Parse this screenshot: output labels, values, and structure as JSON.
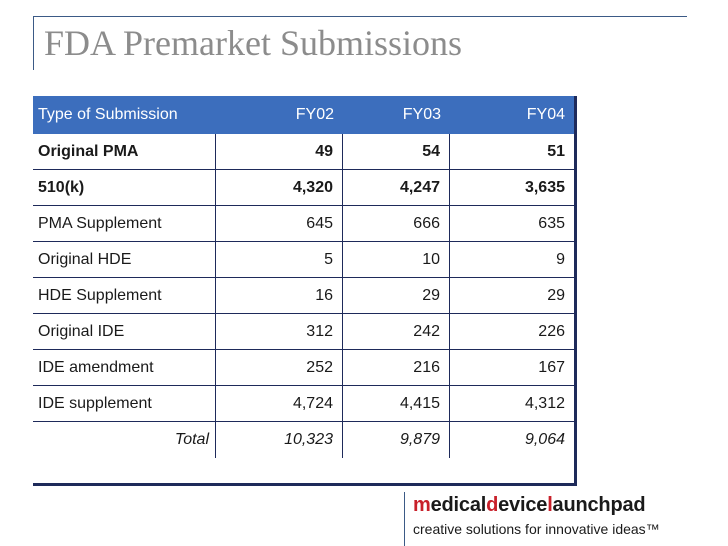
{
  "title": "FDA Premarket Submissions",
  "table": {
    "headers": [
      "Type of Submission",
      "FY02",
      "FY03",
      "FY04"
    ],
    "rows": [
      {
        "label": "Original PMA",
        "fy02": "49",
        "fy03": "54",
        "fy04": "51",
        "bold": true
      },
      {
        "label": "510(k)",
        "fy02": "4,320",
        "fy03": "4,247",
        "fy04": "3,635",
        "bold": true
      },
      {
        "label": "PMA Supplement",
        "fy02": "645",
        "fy03": "666",
        "fy04": "635"
      },
      {
        "label": "Original HDE",
        "fy02": "5",
        "fy03": "10",
        "fy04": "9"
      },
      {
        "label": "HDE Supplement",
        "fy02": "16",
        "fy03": "29",
        "fy04": "29"
      },
      {
        "label": "Original IDE",
        "fy02": "312",
        "fy03": "242",
        "fy04": "226"
      },
      {
        "label": "IDE amendment",
        "fy02": "252",
        "fy03": "216",
        "fy04": "167"
      },
      {
        "label": "IDE supplement",
        "fy02": "4,724",
        "fy03": "4,415",
        "fy04": "4,312"
      }
    ],
    "total": {
      "label": "Total",
      "fy02": "10,323",
      "fy03": "9,879",
      "fy04": "9,064"
    }
  },
  "logo": {
    "parts": [
      {
        "text": "m",
        "red": true
      },
      {
        "text": "edical",
        "red": false
      },
      {
        "text": "d",
        "red": true
      },
      {
        "text": "evice",
        "red": false
      },
      {
        "text": "l",
        "red": true
      },
      {
        "text": "aunchpad",
        "red": false
      }
    ],
    "tagline": "creative solutions for innovative ideas™"
  },
  "colors": {
    "header_bg": "#3c6ebd",
    "border": "#1e2a5a",
    "title": "#8c8c8c",
    "logo_accent": "#c8202a"
  }
}
